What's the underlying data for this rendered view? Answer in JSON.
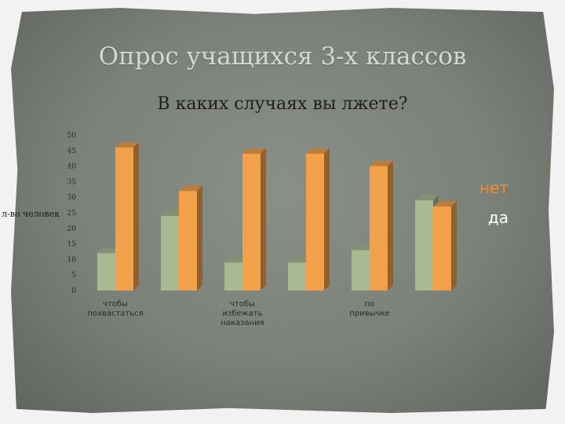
{
  "slide": {
    "title": "Опрос  учащихся 3-х классов"
  },
  "chart_data": {
    "type": "bar",
    "title": "В каких случаях вы лжете?",
    "ylabel": "л-во человек",
    "xlabel": "",
    "ylim": [
      0,
      50
    ],
    "yticks": [
      0,
      5,
      10,
      15,
      20,
      25,
      30,
      35,
      40,
      45,
      50
    ],
    "categories": [
      "чтобы похвастаться",
      "",
      "чтобы избежать наказания",
      "",
      "по привычке",
      ""
    ],
    "series": [
      {
        "name": "да",
        "color": "#a9b991",
        "values": [
          12,
          24,
          9,
          9,
          13,
          29
        ]
      },
      {
        "name": "нет",
        "color": "#f2a04a",
        "values": [
          46,
          32,
          44,
          44,
          40,
          27
        ]
      }
    ],
    "legend": {
      "placement": "right",
      "items": [
        {
          "label": "нет",
          "color": "#f28a2e"
        },
        {
          "label": "да",
          "color": "#ffffff"
        }
      ]
    },
    "grid": false
  }
}
